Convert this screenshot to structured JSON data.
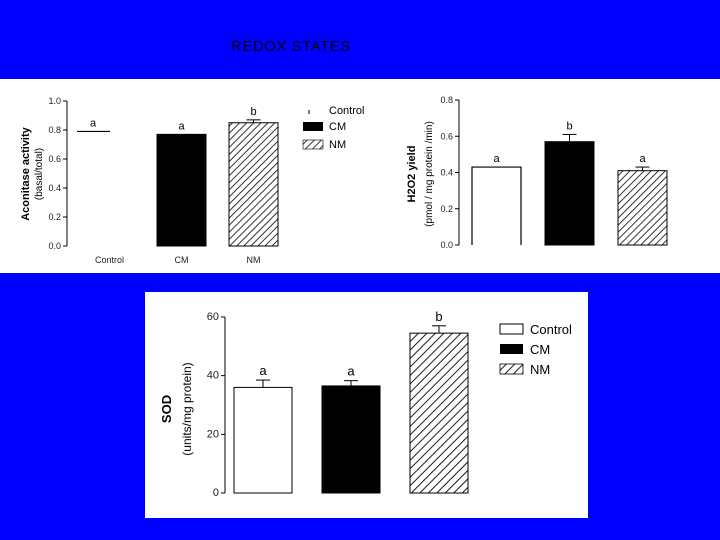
{
  "slide": {
    "title": "REDOX STATES"
  },
  "legend_entries": [
    "Control",
    "CM",
    "NM"
  ],
  "chart_data": [
    {
      "type": "bar",
      "categories": [
        "Control",
        "CM",
        "NM"
      ],
      "values": [
        0.79,
        0.77,
        0.85
      ],
      "errors": [
        0,
        0,
        0.02
      ],
      "significance": [
        "a",
        "a",
        "b"
      ],
      "ylabel_main": "Aconitase activity",
      "ylabel_sub": "(basal/total)",
      "ylim": [
        0,
        1.0
      ],
      "yticks": [
        "0.0",
        "0.2",
        "0.4",
        "0.6",
        "0.8",
        "1.0"
      ],
      "show_category_labels": true,
      "legend": "right"
    },
    {
      "type": "bar",
      "categories": [
        "Control",
        "CM",
        "NM"
      ],
      "values": [
        0.43,
        0.57,
        0.41
      ],
      "errors": [
        0,
        0.04,
        0.02
      ],
      "significance": [
        "a",
        "b",
        "a"
      ],
      "ylabel_main": "H2O2 yield",
      "ylabel_sub": "(pmol / mg protein /min)",
      "ylim": [
        0,
        0.8
      ],
      "yticks": [
        "0.0",
        "0.2",
        "0.4",
        "0.6",
        "0.8"
      ],
      "show_category_labels": false,
      "legend": "none"
    },
    {
      "type": "bar",
      "categories": [
        "Control",
        "CM",
        "NM"
      ],
      "values": [
        36,
        36.5,
        54.5
      ],
      "errors": [
        2.5,
        1.8,
        2.5
      ],
      "significance": [
        "a",
        "a",
        "b"
      ],
      "ylabel_main": "SOD",
      "ylabel_sub": "(units/mg protein)",
      "ylim": [
        0,
        60
      ],
      "yticks": [
        "0",
        "20",
        "40",
        "60"
      ],
      "show_category_labels": false,
      "legend": "right"
    }
  ]
}
